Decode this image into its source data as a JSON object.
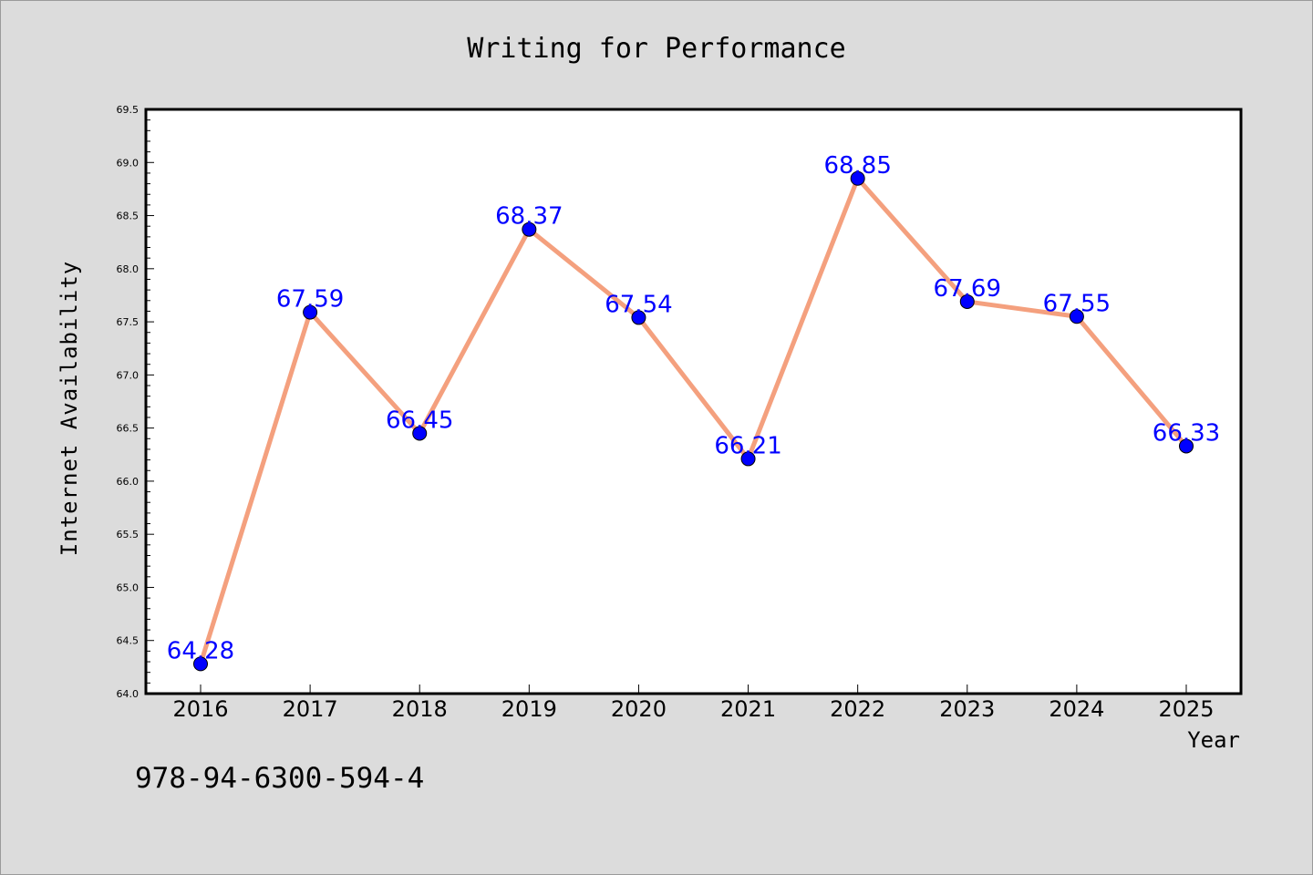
{
  "chart_data": {
    "type": "line",
    "title": "Writing for Performance",
    "xlabel": "Year",
    "ylabel": "Internet Availability",
    "x": [
      "2016",
      "2017",
      "2018",
      "2019",
      "2020",
      "2021",
      "2022",
      "2023",
      "2024",
      "2025"
    ],
    "series": [
      {
        "values": [
          64.28,
          67.59,
          66.45,
          68.37,
          67.54,
          66.21,
          68.85,
          67.69,
          67.55,
          66.33
        ],
        "line_color": "#f4a07e",
        "marker_color": "#0000ff"
      }
    ],
    "ylim": [
      64.0,
      69.5
    ],
    "yticks": [
      "64.0",
      "64.5",
      "65.0",
      "65.5",
      "66.0",
      "66.5",
      "67.0",
      "67.5",
      "68.0",
      "68.5",
      "69.0",
      "69.5"
    ],
    "data_labels": [
      "64.28",
      "67.59",
      "66.45",
      "68.37",
      "67.54",
      "66.21",
      "68.85",
      "67.69",
      "67.55",
      "66.33"
    ],
    "grid": false,
    "legend": "none"
  },
  "footer": {
    "isbn": "978-94-6300-594-4"
  },
  "colors": {
    "background": "#dcdcdc",
    "plot_background": "#ffffff",
    "line": "#f4a07e",
    "marker": "#0000ff",
    "data_label": "#0000ff"
  }
}
